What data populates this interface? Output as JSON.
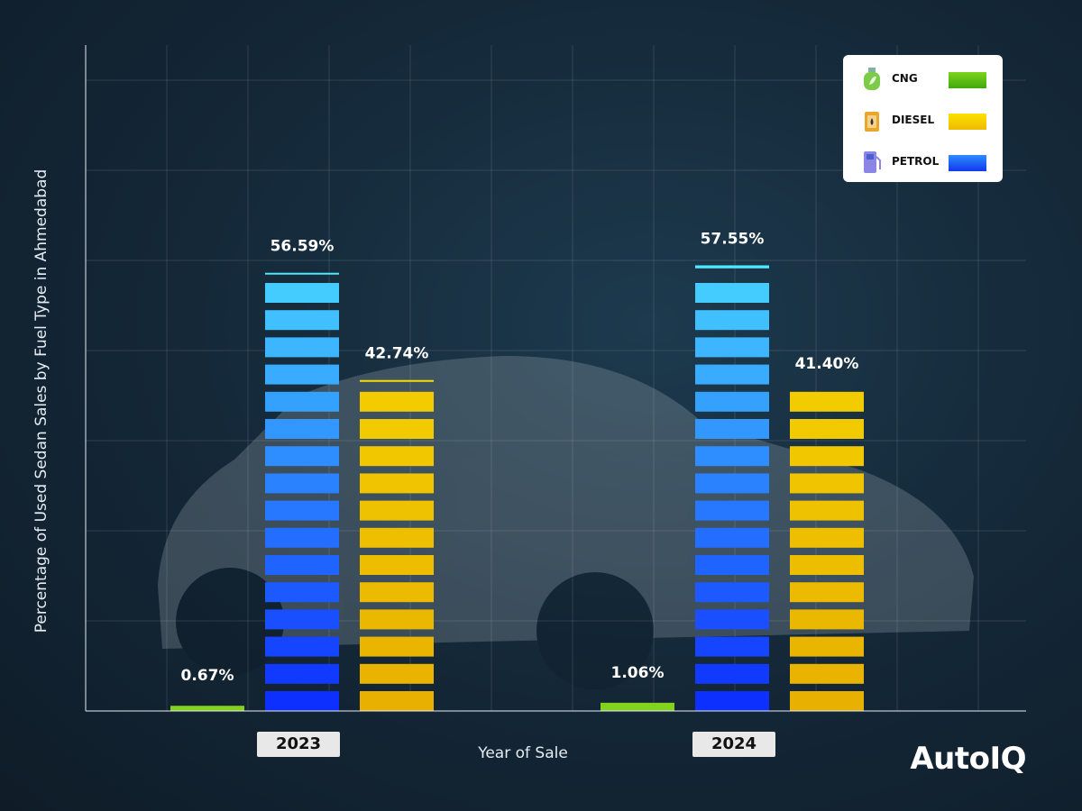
{
  "chart_data": {
    "type": "bar",
    "xlabel": "Year of Sale",
    "ylabel": "Percentage of Used Sedan Sales by Fuel Type in Ahmedabad",
    "categories": [
      "2023",
      "2024"
    ],
    "ylim": [
      0,
      86
    ],
    "grid": true,
    "legend_position": "top-right",
    "series": [
      {
        "name": "CNG",
        "values": [
          0.67,
          1.06
        ],
        "labels": [
          "0.67%",
          "1.06%"
        ],
        "color": "#5cc21a"
      },
      {
        "name": "PETROL",
        "values": [
          56.59,
          57.55
        ],
        "labels": [
          "56.59%",
          "57.55%"
        ],
        "color": "#1f5cff"
      },
      {
        "name": "DIESEL",
        "values": [
          42.74,
          41.4
        ],
        "labels": [
          "42.74%",
          "41.40%"
        ],
        "color": "#f2c500"
      }
    ]
  },
  "legend": [
    {
      "label": "CNG",
      "icon": "gas-cylinder-icon",
      "color": "#5cc21a"
    },
    {
      "label": "DIESEL",
      "icon": "jerry-can-icon",
      "color": "#f2c500"
    },
    {
      "label": "PETROL",
      "icon": "fuel-pump-icon",
      "color": "#1f5cff"
    }
  ],
  "brand": "AutoIQ"
}
